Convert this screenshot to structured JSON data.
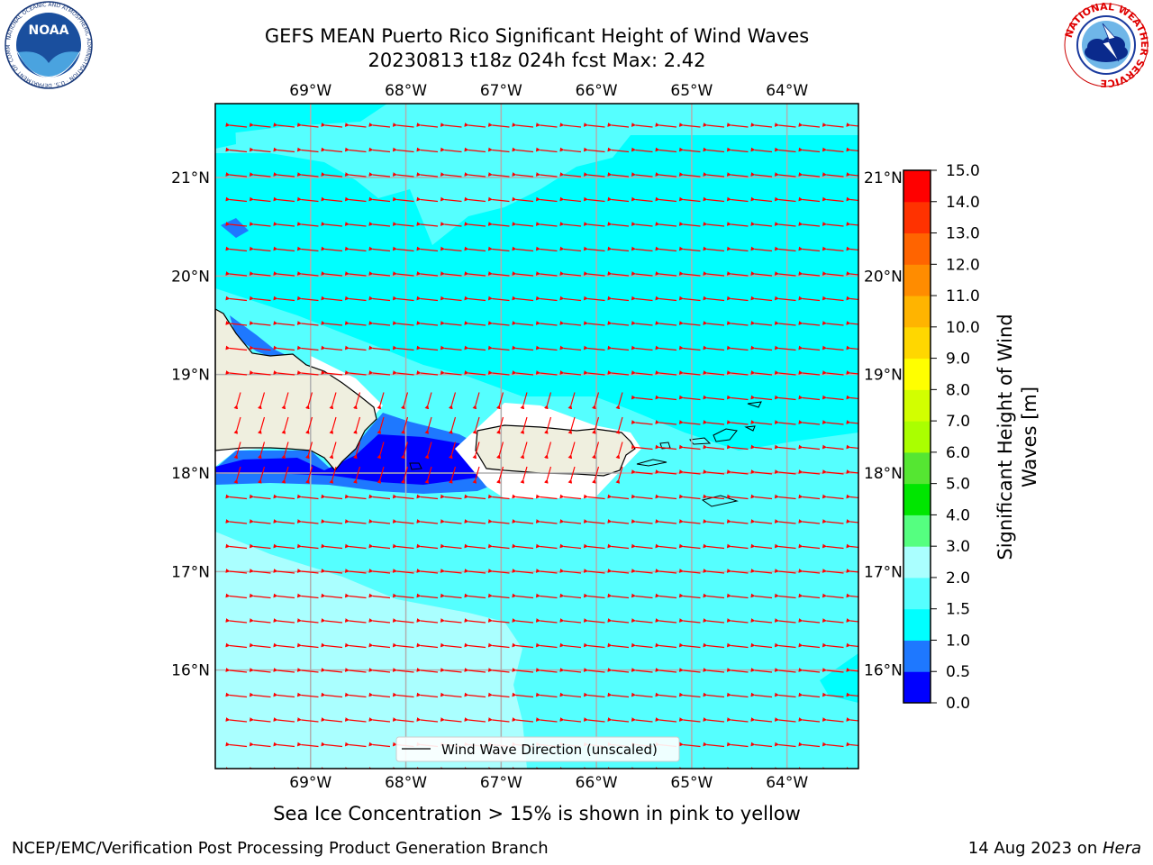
{
  "header": {
    "title_line1": "GEFS MEAN Puerto Rico Significant Height of Wind Waves",
    "title_line2": "20230813 t18z 024h fcst   Max: 2.42"
  },
  "logos": {
    "noaa": {
      "text": "NOAA",
      "ring": "NATIONAL OCEANIC AND ATMOSPHERIC ADMINISTRATION · U.S. DEPARTMENT OF COMMERCE"
    },
    "nws": {
      "ring": "NATIONAL WEATHER SERVICE"
    }
  },
  "map": {
    "lon_range": [
      -70.0,
      -63.25
    ],
    "lat_range": [
      15.0,
      21.75
    ],
    "lon_ticks": [
      "69°W",
      "68°W",
      "67°W",
      "66°W",
      "65°W",
      "64°W"
    ],
    "lon_values": [
      -69,
      -68,
      -67,
      -66,
      -65,
      -64
    ],
    "lat_ticks": [
      "21°N",
      "20°N",
      "19°N",
      "18°N",
      "17°N",
      "16°N"
    ],
    "lat_values": [
      21,
      20,
      19,
      18,
      17,
      16
    ],
    "grid": true,
    "arrow_color": "#ff0000",
    "legend_label": "Wind Wave Direction (unscaled)",
    "legend_placement": "bottom-center"
  },
  "colorbar": {
    "label": "Significant Height of Wind Waves [m]",
    "label_line1": "Significant Height of Wind",
    "label_line2": "Waves [m]",
    "ticks": [
      "15.0",
      "14.0",
      "13.0",
      "12.0",
      "11.0",
      "10.0",
      "9.0",
      "8.0",
      "7.0",
      "6.0",
      "5.0",
      "4.0",
      "3.0",
      "2.0",
      "1.5",
      "1.0",
      "0.5",
      "0.0"
    ],
    "levels": [
      0.0,
      0.5,
      1.0,
      1.5,
      2.0,
      3.0,
      4.0,
      5.0,
      6.0,
      7.0,
      8.0,
      9.0,
      10.0,
      11.0,
      12.0,
      13.0,
      14.0,
      15.0
    ],
    "colors": [
      "#0000ff",
      "#1e78ff",
      "#00ffff",
      "#55ffff",
      "#aaffff",
      "#55ff80",
      "#00e600",
      "#55e632",
      "#aaff00",
      "#d2ff00",
      "#ffff00",
      "#ffd700",
      "#ffb400",
      "#ff8c00",
      "#ff6400",
      "#ff3200",
      "#ff0000"
    ]
  },
  "notes": {
    "sea_ice": "Sea Ice Concentration > 15% is shown in pink to yellow"
  },
  "footer": {
    "left": "NCEP/EMC/Verification Post Processing Product Generation Branch",
    "right_prefix": "14 Aug 2023 on ",
    "right_host": "Hera"
  }
}
